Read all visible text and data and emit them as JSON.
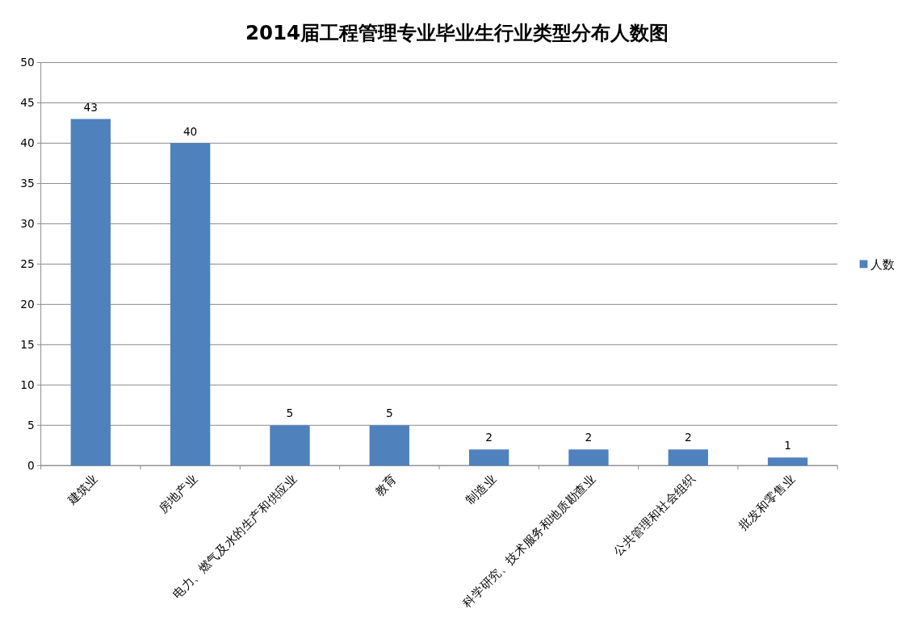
{
  "chart_data": {
    "type": "bar",
    "title": "2014届工程管理专业毕业生行业类型分布人数图",
    "categories": [
      "建筑业",
      "房地产业",
      "电力、燃气及水的生产和供应业",
      "教育",
      "制造业",
      "科学研究、技术服务和地质勘查业",
      "公共管理和社会组织",
      "批发和零售业"
    ],
    "series": [
      {
        "name": "人数",
        "color": "#4f81bd",
        "values": [
          43,
          40,
          5,
          5,
          2,
          2,
          2,
          1
        ]
      }
    ],
    "ylim": [
      0,
      50
    ],
    "yticks": [
      0,
      5,
      10,
      15,
      20,
      25,
      30,
      35,
      40,
      45,
      50
    ],
    "grid": "y",
    "legend": "right",
    "data_labels": true
  }
}
